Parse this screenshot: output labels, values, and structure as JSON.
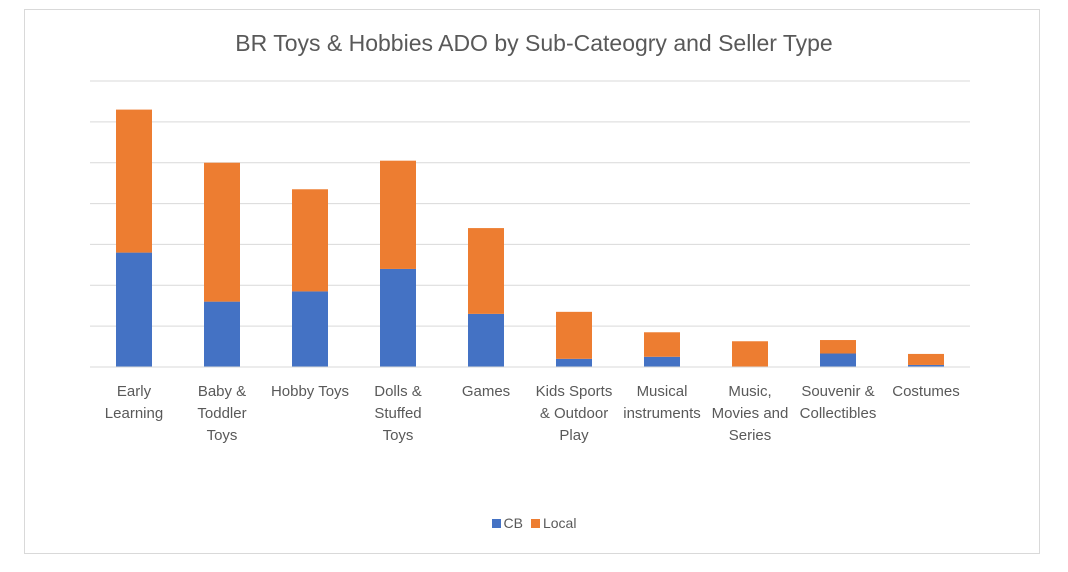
{
  "chart_data": {
    "type": "bar",
    "stacked": true,
    "title": "BR Toys & Hobbies ADO by Sub-Cateogry and Seller Type",
    "categories": [
      "Early\nLearning",
      "Baby &\nToddler\nToys",
      "Hobby Toys",
      "Dolls &\nStuffed\nToys",
      "Games",
      "Kids Sports\n& Outdoor\nPlay",
      "Musical\ninstruments",
      "Music,\nMovies and\nSeries",
      "Souvenir &\nCollectibles",
      "Costumes"
    ],
    "series": [
      {
        "name": "CB",
        "color": "#4472c4",
        "values": [
          2.8,
          1.6,
          1.85,
          2.4,
          1.3,
          0.2,
          0.25,
          0.0,
          0.33,
          0.05
        ]
      },
      {
        "name": "Local",
        "color": "#ed7d31",
        "values": [
          3.5,
          3.4,
          2.5,
          2.65,
          2.1,
          1.15,
          0.6,
          0.63,
          0.33,
          0.27
        ]
      }
    ],
    "ylim": [
      0,
      7
    ],
    "y_gridlines": true,
    "y_tick_labels_shown": false,
    "legend_position": "bottom"
  }
}
